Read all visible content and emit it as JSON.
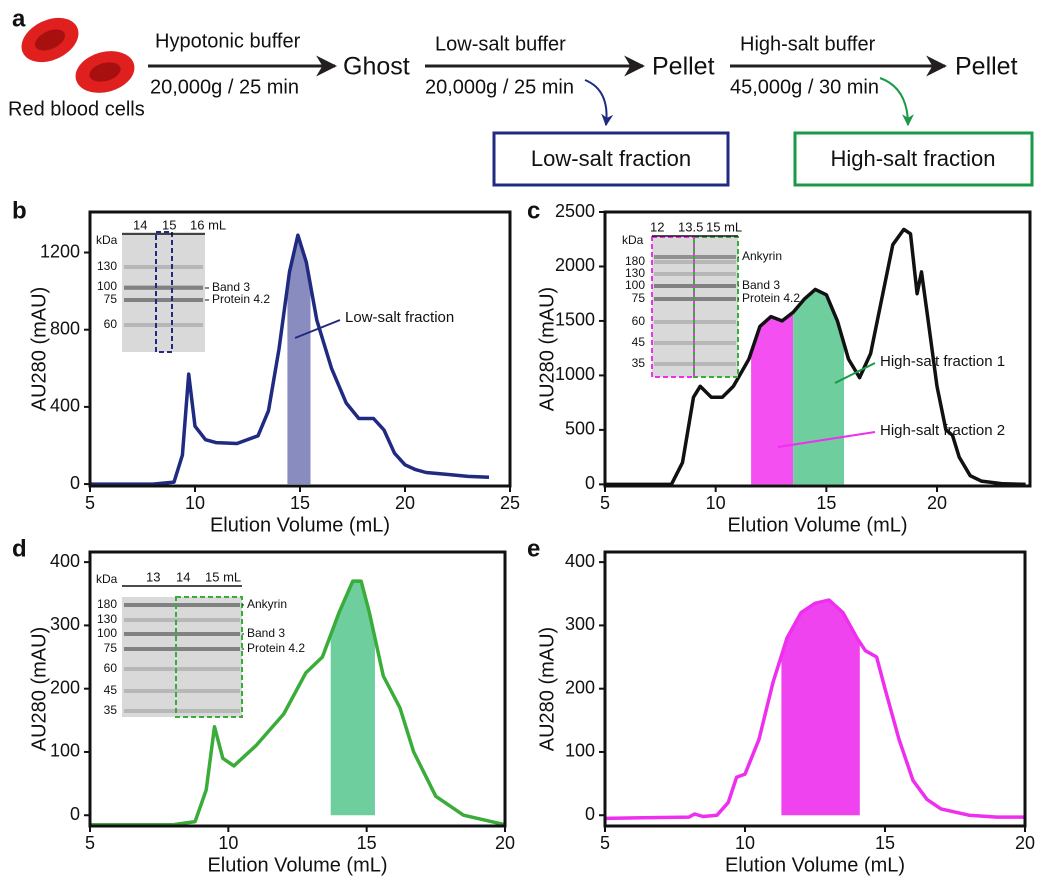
{
  "scheme": {
    "label": "a",
    "source": "Red blood cells",
    "steps": [
      {
        "buffer": "Hypotonic buffer",
        "condition": "20,000g / 25 min",
        "product": "Ghost"
      },
      {
        "buffer": "Low-salt buffer",
        "condition": "20,000g / 25 min",
        "product": "Pellet",
        "fraction": "Low-salt fraction"
      },
      {
        "buffer": "High-salt buffer",
        "condition": "45,000g / 30 min",
        "product": "Pellet",
        "fraction": "High-salt fraction"
      }
    ]
  },
  "chart_data": [
    {
      "type": "line",
      "panel": "b",
      "xlabel": "Elution Volume (mL)",
      "ylabel": "AU280 (mAU)",
      "color": "#1f2a80",
      "x": [
        5,
        8,
        9,
        9.4,
        9.7,
        10,
        10.5,
        11,
        12,
        13,
        13.5,
        14,
        14.5,
        14.9,
        15.3,
        15.8,
        16.5,
        17.2,
        17.8,
        18.5,
        19,
        19.5,
        20,
        20.5,
        21,
        22,
        23,
        24
      ],
      "values": [
        0,
        0,
        10,
        150,
        570,
        300,
        230,
        215,
        210,
        250,
        380,
        700,
        1100,
        1290,
        1150,
        850,
        600,
        420,
        340,
        340,
        280,
        160,
        100,
        75,
        60,
        50,
        40,
        35
      ],
      "xlim": [
        5,
        25
      ],
      "xticks": [
        5,
        10,
        15,
        20,
        25
      ],
      "ylim": [
        -10,
        1410
      ],
      "yticks": [
        0,
        400,
        800,
        1200
      ],
      "shaded": [
        {
          "range": [
            14.4,
            15.5
          ],
          "color": "#7b7fb8"
        }
      ],
      "annotations": [
        {
          "text": "Low-salt fraction",
          "color": "#1f2a80"
        }
      ],
      "inset": {
        "lanes": [
          "14",
          "15",
          "16 mL"
        ],
        "unit": "kDa",
        "markers": [
          "130",
          "100",
          "75",
          "60"
        ],
        "bands": [
          {
            "name": "Band 3",
            "color": "#f7941d"
          },
          {
            "name": "Protein 4.2",
            "color": "#1fbf9f"
          }
        ]
      }
    },
    {
      "type": "line",
      "panel": "c",
      "xlabel": "Elution Volume (mL)",
      "ylabel": "AU280 (mAU)",
      "color": "#111111",
      "x": [
        5,
        8,
        8.5,
        9,
        9.3,
        9.8,
        10.3,
        10.8,
        11.5,
        12,
        12.5,
        13,
        13.5,
        14,
        14.5,
        15,
        15.5,
        16,
        16.5,
        17,
        17.5,
        18,
        18.5,
        18.8,
        19.1,
        19.3,
        19.6,
        20,
        20.4,
        20.7,
        21,
        21.5,
        22,
        23,
        24
      ],
      "values": [
        0,
        0,
        200,
        800,
        900,
        800,
        800,
        900,
        1150,
        1450,
        1540,
        1500,
        1580,
        1700,
        1790,
        1740,
        1500,
        1150,
        980,
        1200,
        1700,
        2200,
        2340,
        2300,
        1750,
        1950,
        1500,
        900,
        500,
        450,
        250,
        80,
        30,
        5,
        0
      ],
      "xlim": [
        5,
        24.2
      ],
      "xticks": [
        5,
        10,
        15,
        20
      ],
      "ylim": [
        -15,
        2500
      ],
      "yticks": [
        0,
        500,
        1000,
        1500,
        2000,
        2500
      ],
      "shaded": [
        {
          "range": [
            11.6,
            13.5
          ],
          "color": "#f23cf0"
        },
        {
          "range": [
            13.5,
            15.8
          ],
          "color": "#5ec994"
        }
      ],
      "annotations": [
        {
          "text": "High-salt fraction 1",
          "color": "#1a9a48"
        },
        {
          "text": "High-salt fraction 2",
          "color": "#ee2fee"
        }
      ],
      "inset": {
        "lanes": [
          "12",
          "13.5",
          "15 mL"
        ],
        "unit": "kDa",
        "markers": [
          "180",
          "130",
          "100",
          "75",
          "60",
          "45",
          "35"
        ],
        "bands": [
          {
            "name": "Ankyrin",
            "color": "#ee2fee"
          },
          {
            "name": "Band 3",
            "color": "#f7941d"
          },
          {
            "name": "Protein 4.2",
            "color": "#1fbf9f"
          }
        ]
      }
    },
    {
      "type": "line",
      "panel": "d",
      "xlabel": "Elution Volume (mL)",
      "ylabel": "AU280 (mAU)",
      "color": "#3aac3a",
      "x": [
        5,
        8,
        8.8,
        9.2,
        9.5,
        9.8,
        10.2,
        11,
        12,
        12.8,
        13.4,
        14,
        14.5,
        14.8,
        15.1,
        15.6,
        16.2,
        16.7,
        17.5,
        18.5,
        19.5,
        20
      ],
      "values": [
        -15,
        -15,
        -10,
        40,
        140,
        90,
        78,
        110,
        160,
        225,
        250,
        320,
        370,
        370,
        320,
        220,
        170,
        100,
        30,
        0,
        -10,
        -15
      ],
      "xlim": [
        5,
        20
      ],
      "xticks": [
        5,
        10,
        15,
        20
      ],
      "ylim": [
        -17,
        416
      ],
      "yticks": [
        0,
        100,
        200,
        300,
        400
      ],
      "shaded": [
        {
          "range": [
            13.7,
            15.3
          ],
          "color": "#5ec994"
        }
      ],
      "inset": {
        "lanes": [
          "13",
          "14",
          "15 mL"
        ],
        "unit": "kDa",
        "markers": [
          "180",
          "130",
          "100",
          "75",
          "60",
          "45",
          "35"
        ],
        "bands": [
          {
            "name": "Ankyrin",
            "color": "#ee2fee"
          },
          {
            "name": "Band 3",
            "color": "#f7941d"
          },
          {
            "name": "Protein 4.2",
            "color": "#1fbf9f"
          }
        ]
      }
    },
    {
      "type": "line",
      "panel": "e",
      "xlabel": "Elution Volume (mL)",
      "ylabel": "AU280 (mAU)",
      "color": "#ee2fee",
      "x": [
        5,
        8,
        8.2,
        8.5,
        9,
        9.4,
        9.7,
        10,
        10.5,
        11,
        11.5,
        12,
        12.5,
        13,
        13.5,
        14,
        14.3,
        14.7,
        15,
        15.5,
        16,
        16.5,
        17,
        18,
        19,
        20
      ],
      "values": [
        -5,
        -3,
        2,
        -2,
        0,
        20,
        60,
        65,
        120,
        210,
        280,
        320,
        335,
        340,
        320,
        280,
        260,
        250,
        200,
        120,
        55,
        25,
        10,
        0,
        -3,
        -3
      ],
      "xlim": [
        5,
        20
      ],
      "xticks": [
        5,
        10,
        15,
        20
      ],
      "ylim": [
        -17,
        416
      ],
      "yticks": [
        0,
        100,
        200,
        300,
        400
      ],
      "shaded": [
        {
          "range": [
            11.3,
            14.1
          ],
          "color": "#ee2fee"
        }
      ]
    }
  ]
}
